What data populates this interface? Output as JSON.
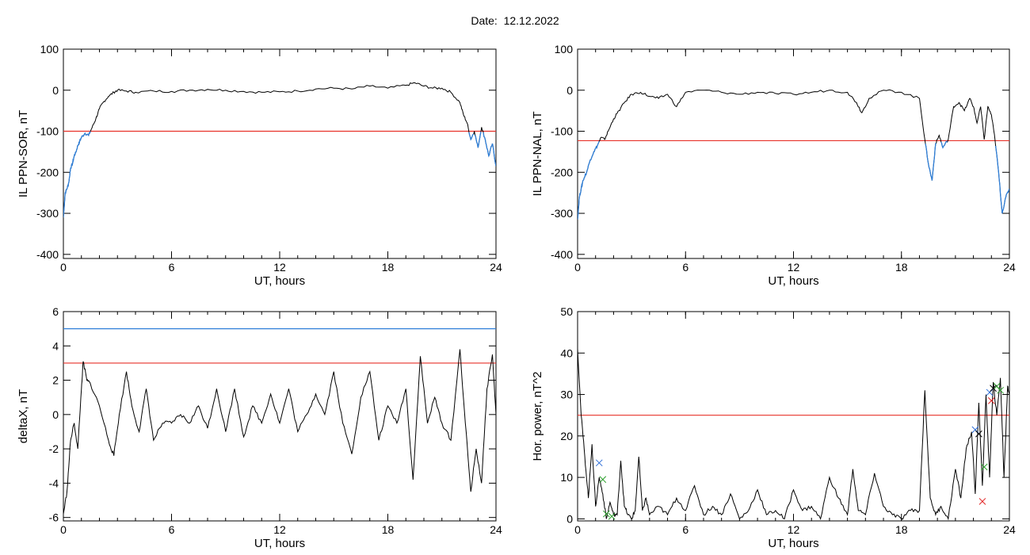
{
  "header": {
    "date_label": "Date:  12.12.2022"
  },
  "colors": {
    "line": "#000000",
    "threshold_red": "#e8322a",
    "threshold_blue": "#2f7fd8",
    "marker_blue": "#2f6fd8",
    "marker_green": "#2ea02e",
    "marker_red": "#e02020"
  },
  "chart_data": [
    {
      "type": "line",
      "ylabel": "IL PPN-SOR, nT",
      "xlabel": "UT, hours",
      "xlim": [
        0,
        24
      ],
      "ylim": [
        -410,
        100
      ],
      "xticks": [
        0,
        6,
        12,
        18,
        24
      ],
      "yticks": [
        -400,
        -300,
        -200,
        -100,
        0,
        100
      ],
      "threshold": {
        "value": -100,
        "color": "red"
      },
      "below_threshold_color": "blue",
      "series": [
        {
          "x": [
            0,
            0.1,
            0.2,
            0.3,
            0.4,
            0.5,
            0.6,
            0.7,
            0.8,
            0.9,
            1.0,
            1.2,
            1.4,
            1.6,
            1.8,
            2.0,
            2.2,
            2.5,
            2.8,
            3.0,
            3.5,
            4,
            5,
            6,
            7,
            8,
            9,
            10,
            11,
            12,
            13,
            14,
            15,
            16,
            17,
            18,
            19,
            19.5,
            20,
            20.5,
            21,
            21.5,
            22,
            22.2,
            22.4,
            22.6,
            22.8,
            23.0,
            23.2,
            23.4,
            23.6,
            23.8,
            24.0
          ],
          "y": [
            -310,
            -250,
            -240,
            -225,
            -190,
            -180,
            -160,
            -150,
            -135,
            -125,
            -115,
            -105,
            -110,
            -90,
            -70,
            -45,
            -30,
            -15,
            -5,
            0,
            -2,
            -5,
            -2,
            -3,
            0,
            2,
            0,
            -3,
            -5,
            -4,
            -2,
            3,
            5,
            3,
            10,
            5,
            12,
            18,
            10,
            5,
            5,
            -5,
            -30,
            -60,
            -80,
            -120,
            -100,
            -140,
            -90,
            -120,
            -160,
            -130,
            -185
          ]
        }
      ]
    },
    {
      "type": "line",
      "ylabel": "IL PPN-NAL, nT",
      "xlabel": "UT, hours",
      "xlim": [
        0,
        24
      ],
      "ylim": [
        -410,
        100
      ],
      "xticks": [
        0,
        6,
        12,
        18,
        24
      ],
      "yticks": [
        -400,
        -300,
        -200,
        -100,
        0,
        100
      ],
      "threshold": {
        "value": -123,
        "color": "red"
      },
      "below_threshold_color": "blue",
      "series": [
        {
          "x": [
            0,
            0.1,
            0.2,
            0.3,
            0.5,
            0.7,
            0.9,
            1.1,
            1.3,
            1.5,
            1.7,
            2.0,
            2.3,
            2.6,
            3.0,
            3.5,
            4,
            4.5,
            5,
            5.5,
            6,
            7,
            8,
            9,
            10,
            11,
            12,
            13,
            14,
            15,
            15.5,
            15.8,
            16.2,
            17,
            18,
            19,
            19.3,
            19.5,
            19.7,
            19.9,
            20.1,
            20.3,
            20.6,
            20.9,
            21.2,
            21.5,
            21.8,
            22.0,
            22.2,
            22.4,
            22.6,
            22.8,
            23.0,
            23.2,
            23.4,
            23.6,
            23.8,
            24.0
          ],
          "y": [
            -315,
            -260,
            -240,
            -220,
            -200,
            -170,
            -150,
            -135,
            -115,
            -120,
            -100,
            -70,
            -50,
            -30,
            -10,
            -5,
            -15,
            -20,
            -10,
            -40,
            -5,
            0,
            -5,
            -10,
            -5,
            -8,
            -10,
            -5,
            0,
            -5,
            -30,
            -55,
            -20,
            0,
            -5,
            -20,
            -120,
            -180,
            -220,
            -130,
            -110,
            -140,
            -120,
            -40,
            -30,
            -50,
            -20,
            -40,
            -80,
            -40,
            -120,
            -40,
            -60,
            -120,
            -200,
            -300,
            -260,
            -240
          ]
        }
      ]
    },
    {
      "type": "line",
      "ylabel": "deltaX, nT",
      "xlabel": "UT, hours",
      "xlim": [
        0,
        24
      ],
      "ylim": [
        -6.2,
        6
      ],
      "xticks": [
        0,
        6,
        12,
        18,
        24
      ],
      "yticks": [
        -6,
        -4,
        -2,
        0,
        2,
        4,
        6
      ],
      "thresholds": [
        {
          "value": 5,
          "color": "blue"
        },
        {
          "value": 3,
          "color": "red"
        }
      ],
      "series": [
        {
          "x": [
            0,
            0.2,
            0.4,
            0.6,
            0.8,
            1.0,
            1.1,
            1.3,
            1.5,
            2.0,
            2.5,
            2.8,
            3.1,
            3.5,
            3.8,
            4.2,
            4.6,
            5.0,
            5.5,
            6.0,
            6.5,
            7.0,
            7.5,
            8.0,
            8.5,
            9.0,
            9.5,
            10.0,
            10.5,
            11.0,
            11.5,
            12.0,
            12.5,
            13.0,
            13.5,
            14.0,
            14.5,
            15.0,
            15.5,
            16.0,
            16.5,
            17.0,
            17.5,
            18.0,
            18.5,
            19.0,
            19.4,
            19.8,
            20.2,
            20.6,
            21.0,
            21.5,
            22.0,
            22.3,
            22.6,
            22.9,
            23.2,
            23.5,
            23.8,
            24.0
          ],
          "y": [
            -5.8,
            -4.5,
            -1.5,
            -0.5,
            -2,
            1.5,
            3.1,
            2,
            1.8,
            0.5,
            -1.5,
            -2.4,
            0,
            2.5,
            0.5,
            -1,
            1.5,
            -1.5,
            -0.5,
            -0.5,
            0,
            -0.5,
            0.5,
            -0.8,
            1.5,
            -1,
            1.5,
            -1.3,
            0.5,
            -0.5,
            1.2,
            -0.5,
            1.5,
            -1,
            0,
            1.2,
            0,
            2.5,
            -0.5,
            -2.3,
            1,
            2.5,
            -1.5,
            0.5,
            -0.5,
            1.5,
            -3.8,
            3.4,
            -0.5,
            1,
            -0.5,
            -1.5,
            3.8,
            -0.5,
            -4.5,
            -2,
            -4,
            1.5,
            3.5,
            0
          ]
        }
      ]
    },
    {
      "type": "line",
      "ylabel": "Hor. power, nT^2",
      "xlabel": "UT, hours",
      "xlim": [
        0,
        24
      ],
      "ylim": [
        -0.5,
        50
      ],
      "xticks": [
        0,
        6,
        12,
        18,
        24
      ],
      "yticks": [
        0,
        10,
        20,
        30,
        40,
        50
      ],
      "threshold": {
        "value": 25,
        "color": "red"
      },
      "series": [
        {
          "x": [
            0,
            0.2,
            0.4,
            0.6,
            0.8,
            1.0,
            1.2,
            1.4,
            1.6,
            1.8,
            2.0,
            2.2,
            2.4,
            2.6,
            2.8,
            3.0,
            3.2,
            3.4,
            3.6,
            3.8,
            4.0,
            4.5,
            5.0,
            5.5,
            6.0,
            6.5,
            7.0,
            7.5,
            8.0,
            8.5,
            9.0,
            9.5,
            10.0,
            10.5,
            11.0,
            11.5,
            12.0,
            12.5,
            13.0,
            13.5,
            14.0,
            14.5,
            15.0,
            15.3,
            15.6,
            16.0,
            16.5,
            17.0,
            17.5,
            18.0,
            18.5,
            19.0,
            19.3,
            19.6,
            19.9,
            20.2,
            20.6,
            21.0,
            21.3,
            21.6,
            21.9,
            22.1,
            22.3,
            22.5,
            22.7,
            22.9,
            23.1,
            23.3,
            23.5,
            23.7,
            23.9,
            24.0
          ],
          "y": [
            41,
            25,
            15,
            5,
            18,
            3,
            10,
            6,
            0,
            4,
            1,
            1,
            14,
            3,
            1,
            0,
            2,
            15,
            2,
            5,
            1,
            3,
            1,
            5,
            2,
            8,
            1,
            3,
            1,
            6,
            0,
            2,
            7,
            1,
            2,
            0,
            7,
            2,
            3,
            0,
            10,
            5,
            1,
            12,
            2,
            1,
            11,
            3,
            1,
            0,
            2,
            2,
            31,
            5,
            1,
            3,
            0,
            12,
            5,
            17,
            21,
            6,
            28,
            8,
            30,
            10,
            33,
            25,
            34,
            10,
            32,
            30
          ]
        }
      ],
      "markers": [
        {
          "x": 1.2,
          "y": 13.5,
          "color": "blue"
        },
        {
          "x": 1.4,
          "y": 9.5,
          "color": "green"
        },
        {
          "x": 1.9,
          "y": 0.6,
          "color": "green"
        },
        {
          "x": 1.6,
          "y": 1.2,
          "color": "green"
        },
        {
          "x": 22.1,
          "y": 21.5,
          "color": "blue"
        },
        {
          "x": 22.3,
          "y": 20.5,
          "color": "black"
        },
        {
          "x": 22.5,
          "y": 4.2,
          "color": "red"
        },
        {
          "x": 22.6,
          "y": 12.5,
          "color": "green"
        },
        {
          "x": 22.9,
          "y": 30.5,
          "color": "blue"
        },
        {
          "x": 23.0,
          "y": 28.5,
          "color": "red"
        },
        {
          "x": 23.3,
          "y": 32,
          "color": "green"
        },
        {
          "x": 23.5,
          "y": 31,
          "color": "green"
        },
        {
          "x": 23.1,
          "y": 31.5,
          "color": "black"
        }
      ]
    }
  ]
}
